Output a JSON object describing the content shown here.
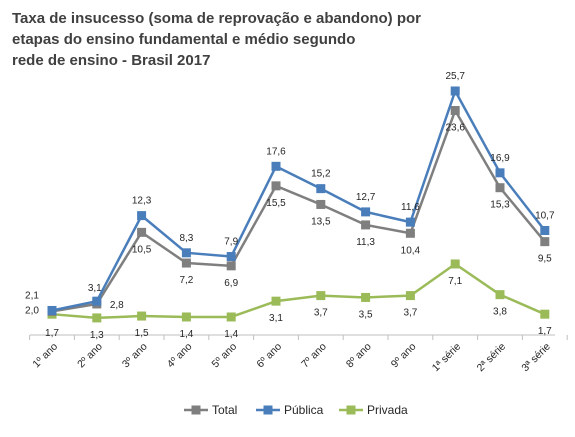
{
  "chart_data": {
    "type": "line",
    "title_lines": [
      "Taxa de insucesso (soma de reprovação e abandono) por",
      "etapas do ensino fundamental e médio segundo",
      "rede de ensino - Brasil 2017"
    ],
    "categories": [
      "1º ano",
      "2º ano",
      "3º ano",
      "4º ano",
      "5º ano",
      "6º ano",
      "7º ano",
      "8º ano",
      "9º ano",
      "1ª série",
      "2ª série",
      "3ª série"
    ],
    "series": [
      {
        "name": "Total",
        "color": "#7f7f7f",
        "values": [
          2.0,
          2.8,
          10.5,
          7.2,
          6.9,
          15.5,
          13.5,
          11.3,
          10.4,
          23.6,
          15.3,
          9.5
        ],
        "labels": [
          "2,0",
          "2,8",
          "10,5",
          "7,2",
          "6,9",
          "15,5",
          "13,5",
          "11,3",
          "10,4",
          "23,6",
          "15,3",
          "9,5"
        ]
      },
      {
        "name": "Pública",
        "color": "#4a7ebb",
        "values": [
          2.1,
          3.1,
          12.3,
          8.3,
          7.9,
          17.6,
          15.2,
          12.7,
          11.6,
          25.7,
          16.9,
          10.7
        ],
        "labels": [
          "2,1",
          "3,1",
          "12,3",
          "8,3",
          "7,9",
          "17,6",
          "15,2",
          "12,7",
          "11,6",
          "25,7",
          "16,9",
          "10,7"
        ]
      },
      {
        "name": "Privada",
        "color": "#9bbb59",
        "values": [
          1.7,
          1.3,
          1.5,
          1.4,
          1.4,
          3.1,
          3.7,
          3.5,
          3.7,
          7.1,
          3.8,
          1.7
        ],
        "labels": [
          "1,7",
          "1,3",
          "1,5",
          "1,4",
          "1,4",
          "3,1",
          "3,7",
          "3,5",
          "3,7",
          "7,1",
          "3,8",
          "1,7"
        ]
      }
    ],
    "ylim": [
      0,
      26
    ],
    "grid": false,
    "legend_position": "bottom"
  }
}
